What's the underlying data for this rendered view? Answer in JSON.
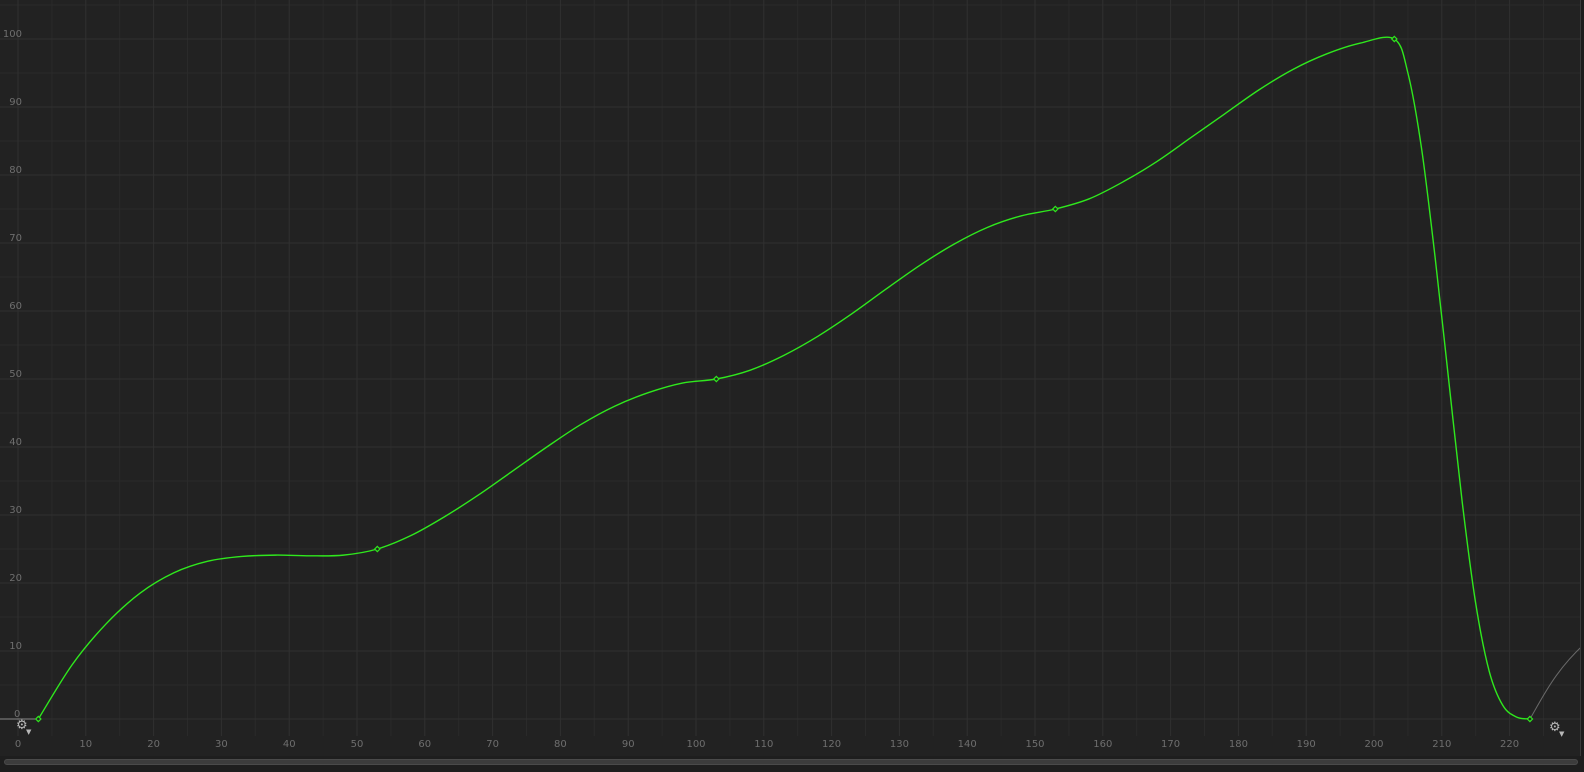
{
  "colors": {
    "background": "#222222",
    "curve": "#2fe81d",
    "keyframe": "#2fe81d",
    "grid_major": "#303030",
    "grid_minor": "#2a2a2a",
    "tick_label": "#6e6e6e"
  },
  "icons": {
    "pre_wrap": "gear-icon",
    "post_wrap": "gear-icon"
  },
  "chart_data": {
    "type": "line",
    "title": "",
    "xlabel": "",
    "ylabel": "",
    "xlim": [
      0,
      230
    ],
    "ylim": [
      0,
      100
    ],
    "x_ticks": [
      0,
      10,
      20,
      30,
      40,
      50,
      60,
      70,
      80,
      90,
      100,
      110,
      120,
      130,
      140,
      150,
      160,
      170,
      180,
      190,
      200,
      210,
      220
    ],
    "y_ticks": [
      0,
      10,
      20,
      30,
      40,
      50,
      60,
      70,
      80,
      90,
      100
    ],
    "grid": true,
    "series": [
      {
        "keyframes": [
          {
            "x": 3,
            "y": 0
          },
          {
            "x": 53,
            "y": 25
          },
          {
            "x": 103,
            "y": 50
          },
          {
            "x": 153,
            "y": 75
          },
          {
            "x": 203,
            "y": 100
          },
          {
            "x": 223,
            "y": 0
          }
        ],
        "points": [
          [
            3,
            0
          ],
          [
            8,
            8
          ],
          [
            13,
            14
          ],
          [
            18,
            18.5
          ],
          [
            23,
            21.5
          ],
          [
            28,
            23.2
          ],
          [
            33,
            23.9
          ],
          [
            38,
            24.1
          ],
          [
            43,
            24
          ],
          [
            48,
            24.1
          ],
          [
            53,
            25
          ],
          [
            58,
            27
          ],
          [
            63,
            29.8
          ],
          [
            68,
            33
          ],
          [
            73,
            36.5
          ],
          [
            78,
            40
          ],
          [
            83,
            43.3
          ],
          [
            88,
            46
          ],
          [
            93,
            48
          ],
          [
            98,
            49.4
          ],
          [
            103,
            50
          ],
          [
            108,
            51.3
          ],
          [
            113,
            53.5
          ],
          [
            118,
            56.3
          ],
          [
            123,
            59.6
          ],
          [
            128,
            63.2
          ],
          [
            133,
            66.7
          ],
          [
            138,
            69.8
          ],
          [
            143,
            72.3
          ],
          [
            148,
            74
          ],
          [
            153,
            75
          ],
          [
            158,
            76.5
          ],
          [
            163,
            79
          ],
          [
            168,
            82
          ],
          [
            173,
            85.5
          ],
          [
            178,
            89
          ],
          [
            183,
            92.5
          ],
          [
            188,
            95.5
          ],
          [
            193,
            97.8
          ],
          [
            198,
            99.4
          ],
          [
            203,
            100
          ],
          [
            205,
            95
          ],
          [
            207,
            84
          ],
          [
            209,
            68
          ],
          [
            211,
            50
          ],
          [
            213,
            32
          ],
          [
            215,
            17
          ],
          [
            217,
            7
          ],
          [
            219,
            2
          ],
          [
            221,
            0.3
          ],
          [
            223,
            0
          ]
        ]
      }
    ]
  }
}
